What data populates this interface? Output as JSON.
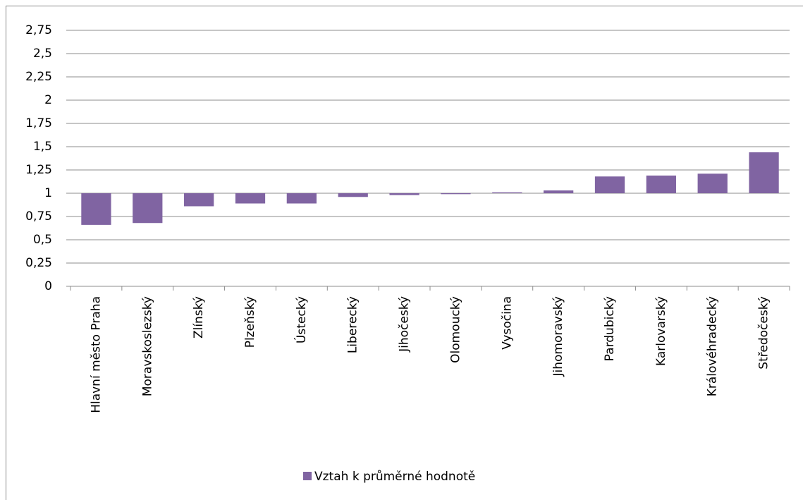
{
  "chart_data": {
    "type": "bar",
    "categories": [
      "Hlavní město Praha",
      "Moravskoslezský",
      "Zlínský",
      "Plzeňský",
      "Ústecký",
      "Liberecký",
      "Jihočeský",
      "Olomoucký",
      "Vysočina",
      "Jihomoravský",
      "Pardubický",
      "Karlovarský",
      "Královéhradecký",
      "Středočeský"
    ],
    "series": [
      {
        "name": "Vztah k průměrné hodnotě",
        "color": "#8064a2",
        "values": [
          0.66,
          0.68,
          0.86,
          0.89,
          0.89,
          0.96,
          0.98,
          0.99,
          1.01,
          1.03,
          1.18,
          1.19,
          1.21,
          1.44
        ]
      }
    ],
    "bar_base": 1,
    "ylim": [
      0,
      2.75
    ],
    "yticks": [
      0,
      {
        "value": 0.25,
        "label": "0,25"
      },
      {
        "value": 0.5,
        "label": "0,5"
      },
      {
        "value": 0.75,
        "label": "0,75"
      },
      1,
      {
        "value": 1.25,
        "label": "1,25"
      },
      {
        "value": 1.5,
        "label": "1,5"
      },
      {
        "value": 1.75,
        "label": "1,75"
      },
      2,
      {
        "value": 2.25,
        "label": "2,25"
      },
      {
        "value": 2.5,
        "label": "2,5"
      },
      {
        "value": 2.75,
        "label": "2,75"
      }
    ],
    "grid": true,
    "legend": "bottom"
  }
}
